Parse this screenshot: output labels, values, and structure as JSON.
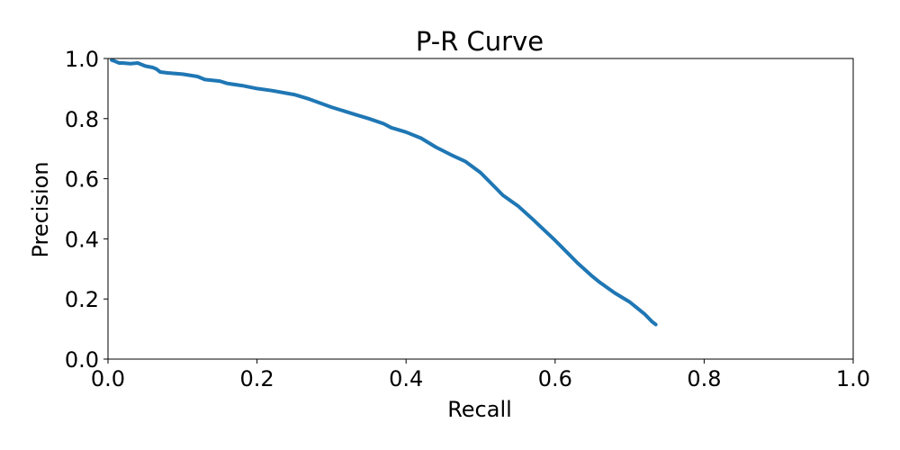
{
  "chart_data": {
    "type": "line",
    "title": "P-R Curve",
    "xlabel": "Recall",
    "ylabel": "Precision",
    "xlim": [
      0.0,
      1.0
    ],
    "ylim": [
      0.0,
      1.0
    ],
    "xticks": [
      "0.0",
      "0.2",
      "0.4",
      "0.6",
      "0.8",
      "1.0"
    ],
    "yticks": [
      "0.0",
      "0.2",
      "0.4",
      "0.6",
      "0.8",
      "1.0"
    ],
    "grid": false,
    "legend": "none",
    "line_color": "#1f77b4",
    "series": [
      {
        "x": [
          0.005,
          0.01,
          0.015,
          0.02,
          0.03,
          0.04,
          0.05,
          0.06,
          0.065,
          0.07,
          0.08,
          0.1,
          0.12,
          0.13,
          0.15,
          0.16,
          0.18,
          0.2,
          0.22,
          0.25,
          0.27,
          0.3,
          0.33,
          0.35,
          0.37,
          0.38,
          0.4,
          0.42,
          0.44,
          0.46,
          0.48,
          0.5,
          0.52,
          0.53,
          0.55,
          0.57,
          0.6,
          0.62,
          0.63,
          0.65,
          0.66,
          0.68,
          0.7,
          0.71,
          0.72,
          0.73,
          0.735
        ],
        "y": [
          0.995,
          0.99,
          0.985,
          0.985,
          0.983,
          0.985,
          0.975,
          0.97,
          0.965,
          0.955,
          0.952,
          0.948,
          0.94,
          0.93,
          0.925,
          0.917,
          0.91,
          0.9,
          0.893,
          0.88,
          0.865,
          0.838,
          0.815,
          0.8,
          0.783,
          0.77,
          0.755,
          0.735,
          0.705,
          0.68,
          0.657,
          0.62,
          0.57,
          0.545,
          0.51,
          0.465,
          0.395,
          0.345,
          0.32,
          0.275,
          0.255,
          0.22,
          0.19,
          0.17,
          0.15,
          0.125,
          0.115
        ]
      }
    ]
  }
}
